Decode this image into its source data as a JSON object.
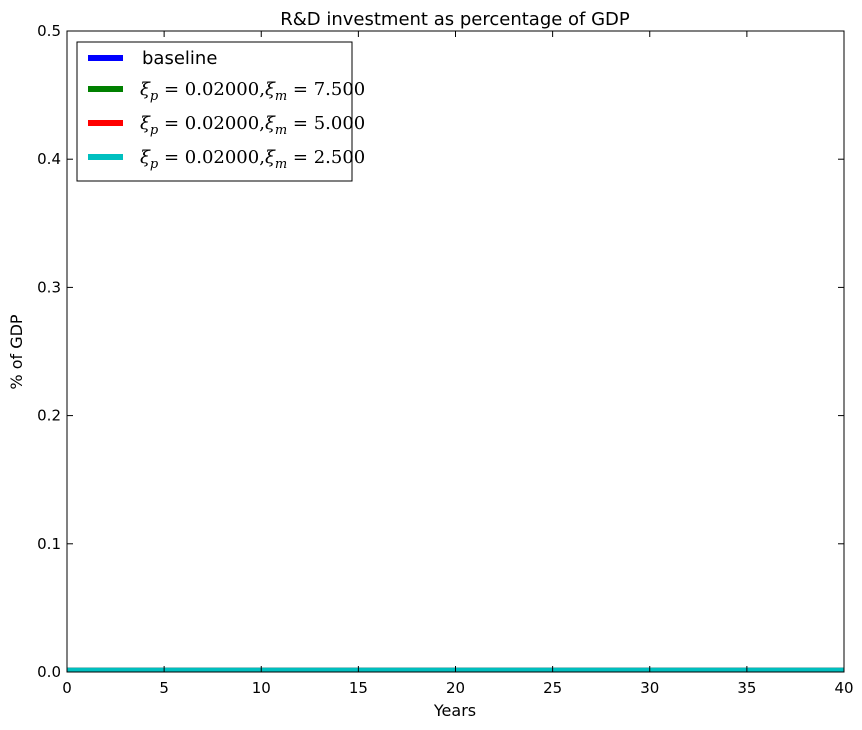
{
  "chart_data": {
    "type": "line",
    "title": "R&D investment as percentage of  GDP",
    "xlabel": "Years",
    "ylabel": "% of GDP",
    "xlim": [
      0,
      40
    ],
    "ylim": [
      0.0,
      0.5
    ],
    "xticks": [
      "0",
      "5",
      "10",
      "15",
      "20",
      "25",
      "30",
      "35",
      "40"
    ],
    "yticks": [
      "0.0",
      "0.1",
      "0.2",
      "0.3",
      "0.4",
      "0.5"
    ],
    "x": [
      0,
      40
    ],
    "series": [
      {
        "name": "baseline",
        "color": "#0000ff",
        "values": [
          0.0015,
          0.0015
        ]
      },
      {
        "name": "ξp = 0.02000,ξm = 7.500",
        "sub_p": "p",
        "sub_m": "m",
        "p_val": "0.02000",
        "m_val": "7.500",
        "color": "#008000",
        "values": [
          0.0015,
          0.0015
        ]
      },
      {
        "name": "ξp = 0.02000,ξm = 5.000",
        "sub_p": "p",
        "sub_m": "m",
        "p_val": "0.02000",
        "m_val": "5.000",
        "color": "#ff0000",
        "values": [
          0.0015,
          0.0015
        ]
      },
      {
        "name": "ξp = 0.02000,ξm = 2.500",
        "sub_p": "p",
        "sub_m": "m",
        "p_val": "0.02000",
        "m_val": "2.500",
        "color": "#00bfbf",
        "values": [
          0.0015,
          0.0015
        ]
      }
    ],
    "legend": "top-left",
    "grid": false
  }
}
